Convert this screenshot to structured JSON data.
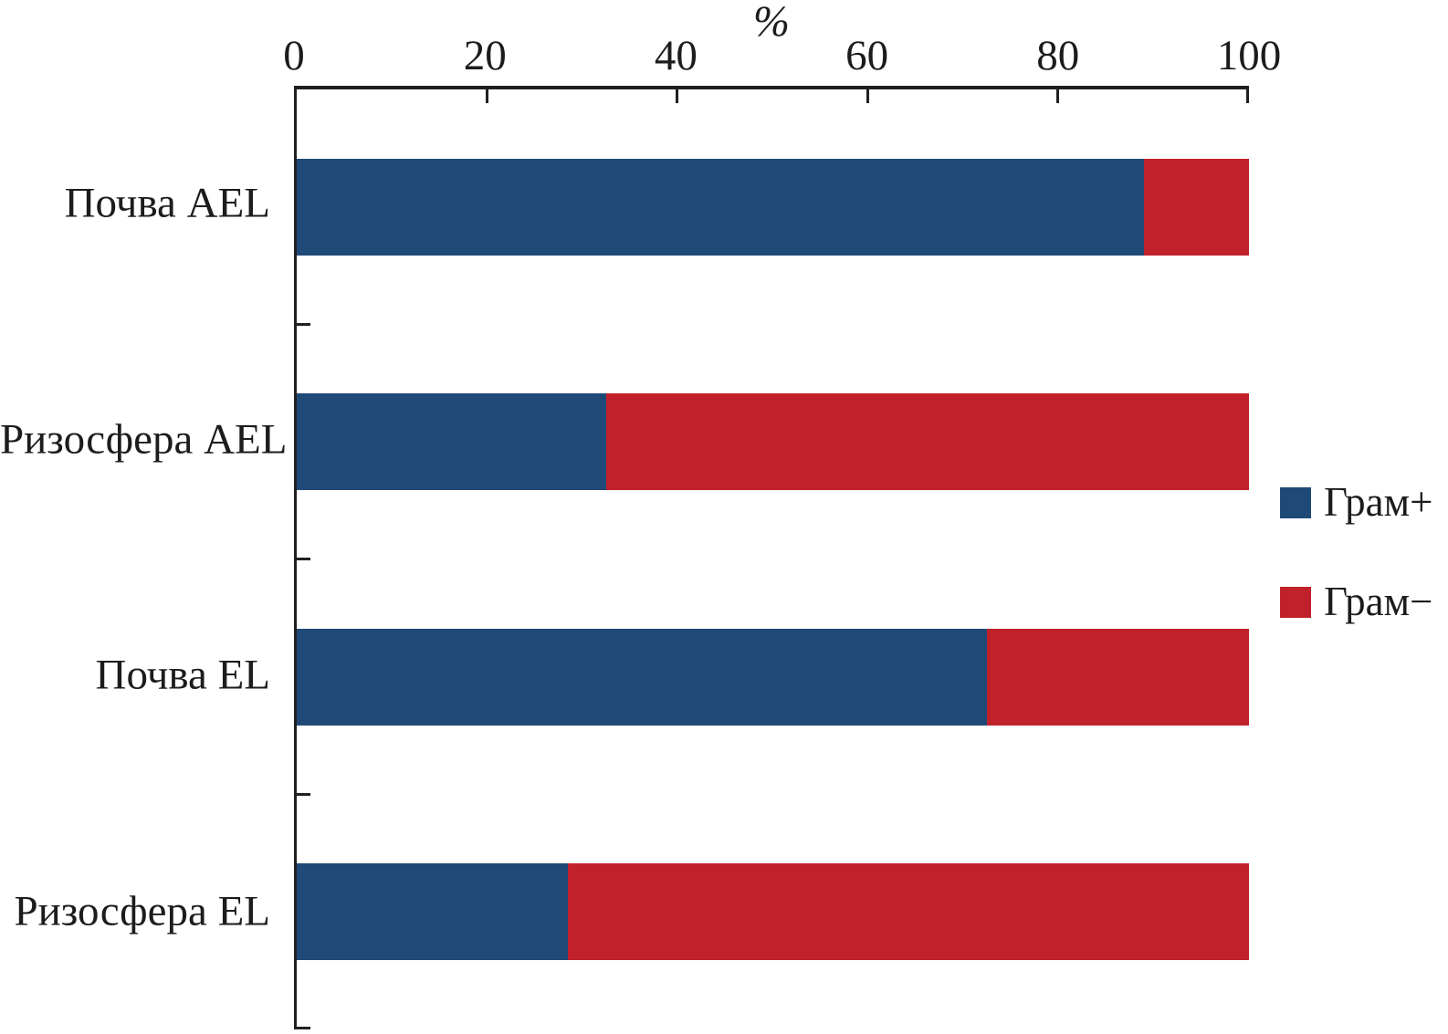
{
  "figure": {
    "background": "#ffffff",
    "axis_color": "#221f1f",
    "text_color": "#1e1b1b"
  },
  "legend": {
    "items": [
      {
        "label": "Грам+",
        "color": "#1f4a78",
        "name": "gram-positive"
      },
      {
        "label": "Грам−",
        "color": "#c1212a",
        "name": "gram-negative"
      }
    ]
  },
  "chart_data": {
    "type": "bar",
    "orientation": "horizontal",
    "stacked": true,
    "title": "",
    "xlabel": "%",
    "ylabel": "",
    "xlim": [
      0,
      100
    ],
    "x_ticks": [
      0,
      20,
      40,
      60,
      80,
      100
    ],
    "grid": false,
    "legend_position": "right",
    "categories": [
      "Почва AEL",
      "Ризосфера AEL",
      "Почва EL",
      "Ризосфера EL"
    ],
    "series": [
      {
        "name": "Грам+",
        "color": "#1f4a78",
        "values": [
          89,
          32.5,
          72.5,
          28.5
        ]
      },
      {
        "name": "Грам−",
        "color": "#c1212a",
        "values": [
          11,
          67.5,
          27.5,
          71.5
        ]
      }
    ]
  }
}
